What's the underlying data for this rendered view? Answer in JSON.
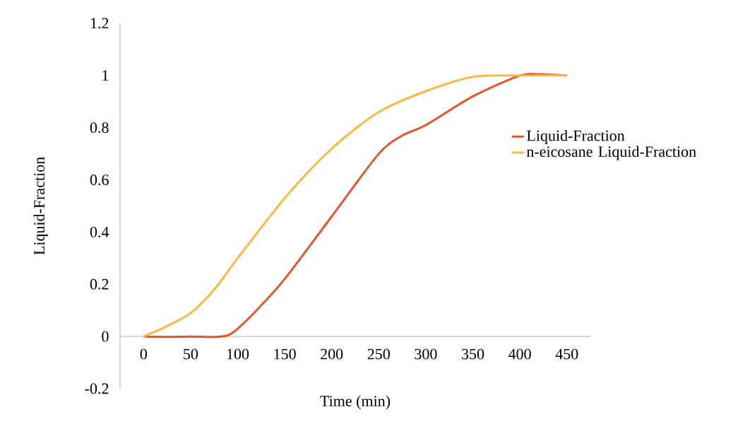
{
  "chart_data": {
    "type": "line",
    "xlabel": "Time (min)",
    "ylabel": "Liquid-Fraction",
    "xlim": [
      -25,
      475
    ],
    "xticks": [
      0,
      50,
      100,
      150,
      200,
      250,
      300,
      350,
      400,
      450
    ],
    "ylim": [
      -0.2,
      1.2
    ],
    "yticks": [
      -0.2,
      0,
      0.2,
      0.4,
      0.6,
      0.8,
      1,
      1.2
    ],
    "legend": "right",
    "grid": false,
    "marker": "none",
    "line_style": "solid",
    "series": [
      {
        "name": "Liquid-Fraction",
        "color": "#e8552a",
        "x": [
          0,
          25,
          50,
          75,
          90,
          100,
          120,
          150,
          200,
          250,
          275,
          300,
          350,
          400,
          420,
          450
        ],
        "values": [
          0,
          -0.002,
          0,
          -0.002,
          0.005,
          0.03,
          0.1,
          0.22,
          0.46,
          0.7,
          0.77,
          0.81,
          0.92,
          1.0,
          1.005,
          1.0
        ]
      },
      {
        "name": "n-eicosane Liquid-Fraction",
        "color": "#fbb944",
        "x": [
          0,
          25,
          50,
          75,
          100,
          150,
          200,
          250,
          300,
          350,
          400,
          450
        ],
        "values": [
          0,
          0.04,
          0.09,
          0.18,
          0.3,
          0.53,
          0.72,
          0.86,
          0.94,
          0.995,
          1.0,
          1.0
        ]
      }
    ]
  }
}
